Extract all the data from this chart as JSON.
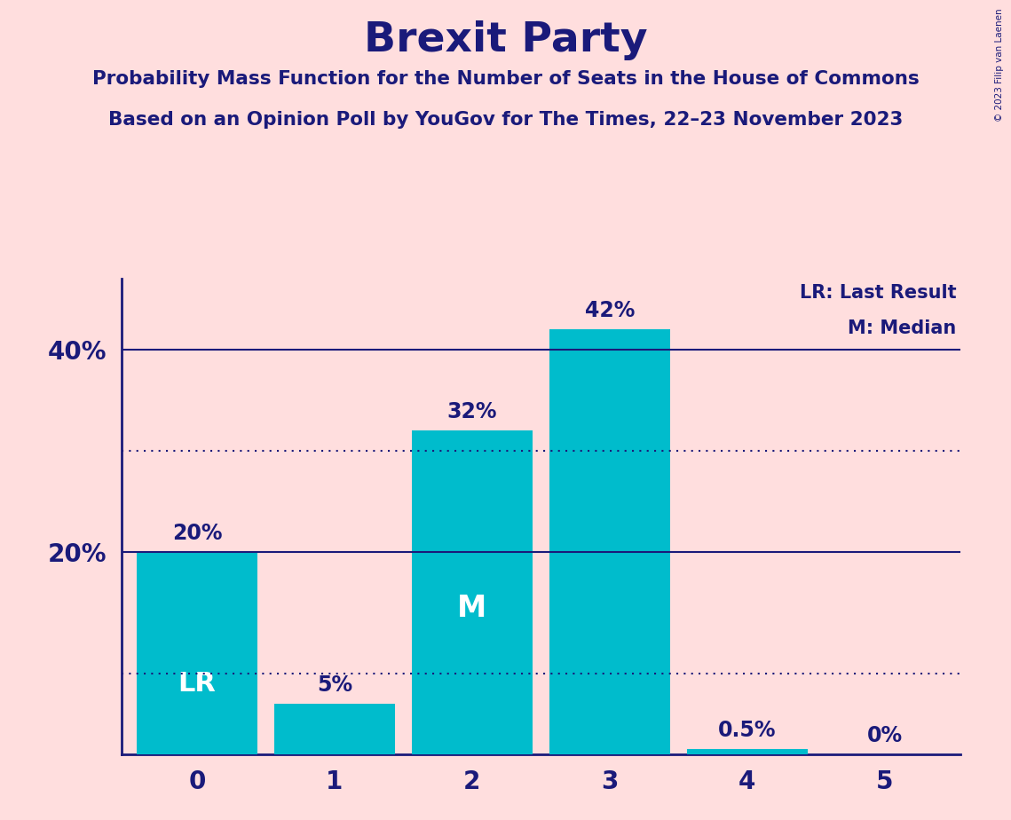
{
  "title": "Brexit Party",
  "subtitle1": "Probability Mass Function for the Number of Seats in the House of Commons",
  "subtitle2": "Based on an Opinion Poll by YouGov for The Times, 22–23 November 2023",
  "copyright": "© 2023 Filip van Laenen",
  "categories": [
    0,
    1,
    2,
    3,
    4,
    5
  ],
  "values": [
    20,
    5,
    32,
    42,
    0.5,
    0
  ],
  "labels": [
    "20%",
    "5%",
    "32%",
    "42%",
    "0.5%",
    "0%"
  ],
  "bar_color": "#00BCCC",
  "background_color": "#FFDEDE",
  "text_color": "#1a1a7a",
  "title_color": "#1a1a7a",
  "axis_color": "#1a1a7a",
  "solid_line_y": [
    20,
    40
  ],
  "dotted_line_lr": 8,
  "dotted_line_m": 30,
  "ylim": [
    0,
    47
  ],
  "legend_lr": "LR: Last Result",
  "legend_m": "M: Median"
}
